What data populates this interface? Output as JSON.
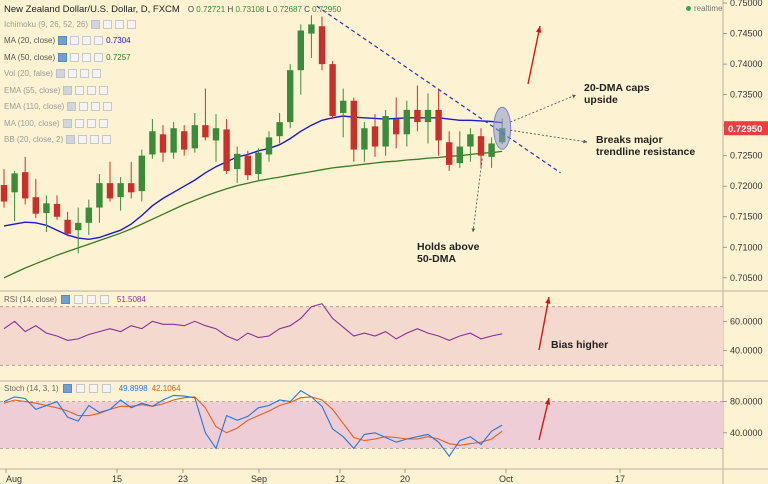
{
  "header": {
    "title": "New Zealand Dollar/U.S. Dollar, D, FXCM",
    "ohlc": [
      {
        "k": "O",
        "v": "0.72721"
      },
      {
        "k": "H",
        "v": "0.73108"
      },
      {
        "k": "L",
        "v": "0.72687"
      },
      {
        "k": "C",
        "v": "0.72950"
      }
    ],
    "realtime_label": "realtime"
  },
  "indicators": [
    {
      "name": "Ichimoku (9, 26, 52, 26)",
      "value": "",
      "visible": false
    },
    {
      "name": "MA (20, close)",
      "value": "0.7304",
      "value_color": "#1a1ad0",
      "visible": true
    },
    {
      "name": "MA (50, close)",
      "value": "0.7257",
      "value_color": "#3a7a20",
      "visible": true
    },
    {
      "name": "Vol (20, false)",
      "value": "",
      "visible": false
    },
    {
      "name": "EMA (55, close)",
      "value": "",
      "visible": false
    },
    {
      "name": "EMA (110, close)",
      "value": "",
      "visible": false
    },
    {
      "name": "MA (100, close)",
      "value": "",
      "visible": false
    },
    {
      "name": "BB (20, close, 2)",
      "value": "",
      "visible": false
    }
  ],
  "rsi_panel": {
    "label": "RSI (14, close)",
    "value": "51.5084",
    "value_color": "#8a2f9a"
  },
  "stoch_panel": {
    "label": "Stoch (14, 3, 1)",
    "values": [
      {
        "v": "49.8998",
        "color": "#2277dd"
      },
      {
        "v": "42.1064",
        "color": "#e06020"
      }
    ]
  },
  "annotations": {
    "dma_caps": "20-DMA caps upside",
    "breaks": "Breaks major trendline resistance",
    "holds": "Holds above 50-DMA",
    "bias": "Bias higher"
  },
  "price_axis": {
    "ticks": [
      "0.75000",
      "0.74500",
      "0.74000",
      "0.73500",
      "0.73000",
      "0.72500",
      "0.72000",
      "0.71500",
      "0.71000",
      "0.70500"
    ],
    "current": "0.72950",
    "current_color": "#e84040"
  },
  "rsi_axis": {
    "ticks": [
      "60.0000",
      "40.0000"
    ]
  },
  "stoch_axis": {
    "ticks": [
      "80.0000",
      "40.0000"
    ]
  },
  "time_axis": {
    "labels": [
      "Aug",
      "15",
      "23",
      "Sep",
      "12",
      "20",
      "Oct",
      "17"
    ]
  },
  "colors": {
    "up": "#3a8c3a",
    "down": "#c8302a",
    "ma20": "#1a1ad0",
    "ma50": "#3a7a20",
    "trendline": "#2233cc",
    "rsi": "#8a2f9a",
    "stoch_k": "#2277dd",
    "stoch_d": "#e06020",
    "arrow": "#d01818",
    "band_rsi": "#f4d9cf",
    "band_stoch": "#efcdd6"
  },
  "chart_data": {
    "type": "candlestick",
    "symbol": "NZD/USD",
    "timeframe": "D",
    "ylim": [
      0.703,
      0.7505
    ],
    "candles": [
      {
        "o": 0.7202,
        "h": 0.7228,
        "l": 0.7165,
        "c": 0.7175
      },
      {
        "o": 0.719,
        "h": 0.7225,
        "l": 0.7143,
        "c": 0.7221
      },
      {
        "o": 0.7223,
        "h": 0.7248,
        "l": 0.717,
        "c": 0.718
      },
      {
        "o": 0.7182,
        "h": 0.7212,
        "l": 0.7148,
        "c": 0.7155
      },
      {
        "o": 0.7156,
        "h": 0.7185,
        "l": 0.7125,
        "c": 0.7172
      },
      {
        "o": 0.7171,
        "h": 0.7185,
        "l": 0.7145,
        "c": 0.715
      },
      {
        "o": 0.7145,
        "h": 0.7158,
        "l": 0.7118,
        "c": 0.7122
      },
      {
        "o": 0.7128,
        "h": 0.7165,
        "l": 0.709,
        "c": 0.714
      },
      {
        "o": 0.714,
        "h": 0.7178,
        "l": 0.712,
        "c": 0.7165
      },
      {
        "o": 0.7165,
        "h": 0.722,
        "l": 0.714,
        "c": 0.7205
      },
      {
        "o": 0.7205,
        "h": 0.724,
        "l": 0.7175,
        "c": 0.718
      },
      {
        "o": 0.7182,
        "h": 0.7215,
        "l": 0.716,
        "c": 0.7205
      },
      {
        "o": 0.7205,
        "h": 0.724,
        "l": 0.718,
        "c": 0.719
      },
      {
        "o": 0.7192,
        "h": 0.726,
        "l": 0.7175,
        "c": 0.725
      },
      {
        "o": 0.7252,
        "h": 0.731,
        "l": 0.7245,
        "c": 0.729
      },
      {
        "o": 0.7285,
        "h": 0.73,
        "l": 0.724,
        "c": 0.7255
      },
      {
        "o": 0.7255,
        "h": 0.7305,
        "l": 0.7245,
        "c": 0.7295
      },
      {
        "o": 0.729,
        "h": 0.73,
        "l": 0.725,
        "c": 0.726
      },
      {
        "o": 0.7262,
        "h": 0.732,
        "l": 0.7255,
        "c": 0.73
      },
      {
        "o": 0.73,
        "h": 0.736,
        "l": 0.7275,
        "c": 0.728
      },
      {
        "o": 0.7275,
        "h": 0.7318,
        "l": 0.724,
        "c": 0.7295
      },
      {
        "o": 0.7293,
        "h": 0.731,
        "l": 0.722,
        "c": 0.7225
      },
      {
        "o": 0.7228,
        "h": 0.7265,
        "l": 0.7205,
        "c": 0.7253
      },
      {
        "o": 0.725,
        "h": 0.7258,
        "l": 0.721,
        "c": 0.7218
      },
      {
        "o": 0.722,
        "h": 0.7262,
        "l": 0.721,
        "c": 0.7255
      },
      {
        "o": 0.7252,
        "h": 0.729,
        "l": 0.724,
        "c": 0.728
      },
      {
        "o": 0.7282,
        "h": 0.732,
        "l": 0.727,
        "c": 0.7305
      },
      {
        "o": 0.7305,
        "h": 0.74,
        "l": 0.7295,
        "c": 0.739
      },
      {
        "o": 0.739,
        "h": 0.7465,
        "l": 0.735,
        "c": 0.7455
      },
      {
        "o": 0.745,
        "h": 0.748,
        "l": 0.741,
        "c": 0.7465
      },
      {
        "o": 0.7462,
        "h": 0.7478,
        "l": 0.739,
        "c": 0.74
      },
      {
        "o": 0.74,
        "h": 0.7405,
        "l": 0.731,
        "c": 0.7315
      },
      {
        "o": 0.732,
        "h": 0.736,
        "l": 0.728,
        "c": 0.734
      },
      {
        "o": 0.734,
        "h": 0.7345,
        "l": 0.724,
        "c": 0.726
      },
      {
        "o": 0.726,
        "h": 0.7305,
        "l": 0.724,
        "c": 0.7295
      },
      {
        "o": 0.7298,
        "h": 0.7318,
        "l": 0.7248,
        "c": 0.7265
      },
      {
        "o": 0.7265,
        "h": 0.7325,
        "l": 0.725,
        "c": 0.7315
      },
      {
        "o": 0.731,
        "h": 0.7345,
        "l": 0.7262,
        "c": 0.7285
      },
      {
        "o": 0.7285,
        "h": 0.734,
        "l": 0.7265,
        "c": 0.7325
      },
      {
        "o": 0.7325,
        "h": 0.7365,
        "l": 0.729,
        "c": 0.7305
      },
      {
        "o": 0.7305,
        "h": 0.7352,
        "l": 0.727,
        "c": 0.7325
      },
      {
        "o": 0.7325,
        "h": 0.736,
        "l": 0.725,
        "c": 0.7275
      },
      {
        "o": 0.7272,
        "h": 0.729,
        "l": 0.7225,
        "c": 0.7235
      },
      {
        "o": 0.7238,
        "h": 0.729,
        "l": 0.723,
        "c": 0.7265
      },
      {
        "o": 0.7265,
        "h": 0.7295,
        "l": 0.724,
        "c": 0.7285
      },
      {
        "o": 0.7282,
        "h": 0.7295,
        "l": 0.723,
        "c": 0.725
      },
      {
        "o": 0.7248,
        "h": 0.728,
        "l": 0.723,
        "c": 0.727
      },
      {
        "o": 0.7272,
        "h": 0.7311,
        "l": 0.7269,
        "c": 0.7295
      }
    ],
    "ma20": [
      0.7135,
      0.7138,
      0.7141,
      0.714,
      0.7136,
      0.7128,
      0.712,
      0.7115,
      0.7113,
      0.7116,
      0.7122,
      0.7128,
      0.7138,
      0.7152,
      0.7168,
      0.718,
      0.719,
      0.72,
      0.721,
      0.7222,
      0.7232,
      0.724,
      0.7248,
      0.7252,
      0.7258,
      0.7262,
      0.7268,
      0.7278,
      0.729,
      0.73,
      0.7308,
      0.7312,
      0.7315,
      0.7313,
      0.7312,
      0.7311,
      0.731,
      0.7311,
      0.7312,
      0.7312,
      0.7312,
      0.7312,
      0.731,
      0.7308,
      0.7308,
      0.7307,
      0.7306,
      0.7304
    ],
    "ma50": [
      0.705,
      0.7058,
      0.7066,
      0.7073,
      0.708,
      0.7087,
      0.7093,
      0.7099,
      0.7105,
      0.7111,
      0.7117,
      0.7123,
      0.713,
      0.7138,
      0.7146,
      0.7154,
      0.7162,
      0.717,
      0.7177,
      0.7184,
      0.719,
      0.7196,
      0.7201,
      0.7205,
      0.7209,
      0.7212,
      0.7215,
      0.7218,
      0.7221,
      0.7224,
      0.7227,
      0.723,
      0.7232,
      0.7234,
      0.7236,
      0.7238,
      0.724,
      0.7241,
      0.7243,
      0.7244,
      0.7246,
      0.7247,
      0.7249,
      0.725,
      0.7252,
      0.7254,
      0.7255,
      0.7257
    ],
    "rsi": [
      55,
      60,
      53,
      57,
      52,
      50,
      47,
      48,
      51,
      53,
      55,
      53,
      57,
      55,
      60,
      58,
      58,
      57,
      60,
      57,
      55,
      50,
      47,
      52,
      49,
      50,
      55,
      57,
      62,
      70,
      72,
      62,
      56,
      50,
      52,
      50,
      53,
      48,
      52,
      55,
      52,
      50,
      47,
      50,
      52,
      48,
      50,
      51.5
    ],
    "stoch_k": [
      80,
      86,
      84,
      70,
      75,
      80,
      60,
      55,
      75,
      66,
      70,
      82,
      72,
      78,
      74,
      82,
      88,
      87,
      85,
      40,
      20,
      62,
      56,
      61,
      72,
      75,
      82,
      80,
      94,
      86,
      74,
      45,
      35,
      20,
      38,
      40,
      34,
      28,
      32,
      35,
      38,
      28,
      10,
      30,
      35,
      25,
      42,
      49.9
    ],
    "stoch_d": [
      78,
      82,
      80,
      78,
      75,
      72,
      68,
      62,
      62,
      65,
      70,
      74,
      74,
      76,
      74,
      77,
      82,
      85,
      86,
      72,
      48,
      40,
      46,
      56,
      62,
      68,
      75,
      79,
      85,
      86,
      82,
      70,
      52,
      34,
      30,
      32,
      35,
      34,
      32,
      32,
      35,
      32,
      26,
      24,
      26,
      28,
      32,
      42.1
    ],
    "rsi_bands": [
      30,
      70
    ],
    "stoch_bands": [
      20,
      80
    ]
  }
}
